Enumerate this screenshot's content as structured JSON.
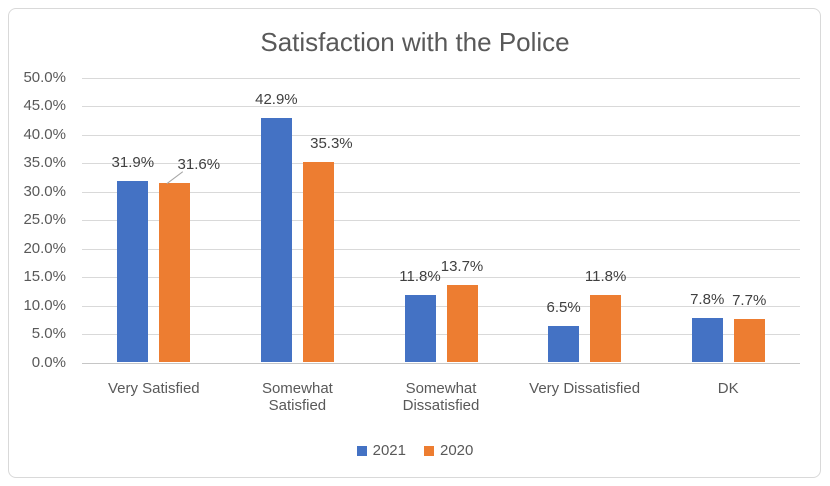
{
  "window": {
    "background": "#FFFFFF",
    "border_color": "#D9D9D9"
  },
  "chart_data": {
    "type": "bar",
    "title": "Satisfaction with the Police",
    "categories": [
      "Very Satisfied",
      "Somewhat Satisfied",
      "Somewhat Dissatisfied",
      "Very Dissatisfied",
      "DK"
    ],
    "series": [
      {
        "name": "2021",
        "color": "#4472C4",
        "values": [
          31.9,
          42.9,
          11.8,
          6.5,
          7.8
        ],
        "labels": [
          "31.9%",
          "42.9%",
          "11.8%",
          "6.5%",
          "7.8%"
        ]
      },
      {
        "name": "2020",
        "color": "#ED7D31",
        "values": [
          31.6,
          35.3,
          13.7,
          11.8,
          7.7
        ],
        "labels": [
          "31.6%",
          "35.3%",
          "13.7%",
          "11.8%",
          "7.7%"
        ]
      }
    ],
    "xlabel": "",
    "ylabel": "",
    "ylim": [
      0,
      50
    ],
    "ytick_step": 5,
    "ytick_labels": [
      "0.0%",
      "5.0%",
      "10.0%",
      "15.0%",
      "20.0%",
      "25.0%",
      "30.0%",
      "35.0%",
      "40.0%",
      "45.0%",
      "50.0%"
    ],
    "grid": true,
    "legend_position": "bottom",
    "data_labels_visible": true,
    "label_adjustments": [
      {
        "series": 1,
        "category": 0,
        "dx": 24,
        "leader": true
      },
      {
        "series": 1,
        "category": 1,
        "dx": 13,
        "leader": false
      }
    ],
    "colors": {
      "gridline": "#D9D9D9",
      "axis_line": "#C6C6C6",
      "axis_text": "#595959",
      "data_label_text": "#404040",
      "title_text": "#595959",
      "leader_line": "#A6A6A6"
    }
  }
}
